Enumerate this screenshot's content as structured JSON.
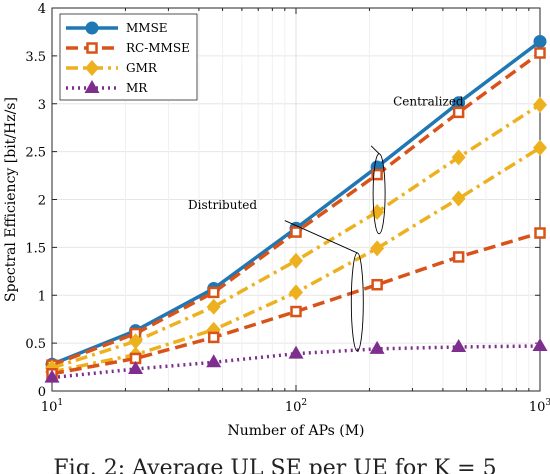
{
  "caption": "Fig. 2: Average UL SE per UE for K = 5",
  "chart_data": {
    "type": "line",
    "xlabel": "Number of APs (M)",
    "ylabel": "Spectral Efficiency [bit/Hz/s]",
    "xscale": "log",
    "xlim": [
      10,
      1000
    ],
    "ylim": [
      0,
      4
    ],
    "yticks": [
      0,
      0.5,
      1,
      1.5,
      2,
      2.5,
      3,
      3.5,
      4
    ],
    "xticks": [
      {
        "value": 10,
        "base": "10",
        "exp": "1"
      },
      {
        "value": 100,
        "base": "10",
        "exp": "2"
      },
      {
        "value": 1000,
        "base": "10",
        "exp": "3"
      }
    ],
    "grid": true,
    "legend_position": "top-left",
    "x": [
      10,
      22,
      46,
      100,
      215,
      464,
      1000
    ],
    "series": [
      {
        "name": "MMSE",
        "group": "Centralized",
        "color": "#1f77b4",
        "style": "solid",
        "marker": "circle",
        "values": [
          0.28,
          0.63,
          1.07,
          1.7,
          2.34,
          3.01,
          3.65
        ]
      },
      {
        "name": "RC-MMSE",
        "group": "Centralized",
        "color": "#d95319",
        "style": "dashed",
        "marker": "square",
        "values": [
          0.27,
          0.6,
          1.03,
          1.66,
          2.26,
          2.91,
          3.53
        ]
      },
      {
        "name": "GMR",
        "group": "Centralized",
        "color": "#edb120",
        "style": "dashdot",
        "marker": "diamond",
        "values": [
          0.24,
          0.52,
          0.88,
          1.36,
          1.87,
          2.44,
          2.99
        ]
      },
      {
        "name": "",
        "legend": false,
        "group": "Distributed",
        "color": "#edb120",
        "style": "dashdot",
        "marker": "diamond",
        "values": [
          0.2,
          0.38,
          0.64,
          1.03,
          1.49,
          2.01,
          2.54
        ]
      },
      {
        "name": "",
        "legend": false,
        "group": "Distributed",
        "color": "#d95319",
        "style": "dashed",
        "marker": "square",
        "values": [
          0.18,
          0.34,
          0.56,
          0.83,
          1.11,
          1.4,
          1.65
        ]
      },
      {
        "name": "MR",
        "group": "Distributed",
        "color": "#7e2f8e",
        "style": "dotted",
        "marker": "triangle",
        "values": [
          0.14,
          0.23,
          0.3,
          0.39,
          0.44,
          0.46,
          0.47
        ]
      }
    ],
    "annotations": [
      {
        "text": "Centralized",
        "target_x": 250,
        "target_y": 2.6
      },
      {
        "text": "Distributed",
        "target_x": 170,
        "target_y": 1.4
      }
    ]
  }
}
